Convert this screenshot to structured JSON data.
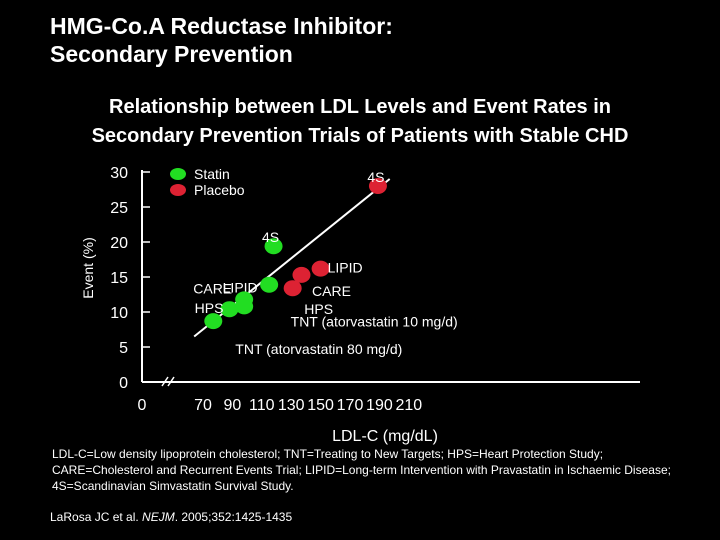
{
  "slide": {
    "title_line1": "HMG-Co.A Reductase Inhibitor:",
    "title_line2": "Secondary Prevention",
    "subtitle_line1": "Relationship between LDL Levels and Event Rates in",
    "subtitle_line2": "Secondary Prevention Trials of Patients with Stable CHD",
    "footnote": "LDL-C=Low density lipoprotein cholesterol; TNT=Treating to New Targets; HPS=Heart Protection Study; CARE=Cholesterol and Recurrent Events Trial; LIPID=Long-term Intervention with Pravastatin in Ischaemic Disease; 4S=Scandinavian Simvastatin Survival Study.",
    "citation_authors": "LaRosa JC et al. ",
    "citation_journal": "NEJM",
    "citation_rest": ". 2005;352:1425-1435"
  },
  "chart_data": {
    "type": "scatter",
    "xlabel": "LDL-C (mg/dL)",
    "ylabel": "Event (%)",
    "x_ticks": [
      "0",
      "70",
      "90",
      "110",
      "130",
      "150",
      "170",
      "190",
      "210"
    ],
    "y_ticks": [
      "0",
      "5",
      "10",
      "15",
      "20",
      "25",
      "30"
    ],
    "xlim": [
      60,
      210
    ],
    "ylim": [
      0,
      30
    ],
    "axis_break": true,
    "legend": [
      {
        "label": "Statin",
        "color": "#22dd22"
      },
      {
        "label": "Placebo",
        "color": "#dd2233"
      }
    ],
    "trend_line": [
      [
        64,
        6.5
      ],
      [
        197,
        29
      ]
    ],
    "points": [
      {
        "label": "4S",
        "group": "Placebo",
        "x": 189,
        "y": 28.0,
        "color": "#dd2233"
      },
      {
        "label": "4S",
        "group": "Statin",
        "x": 118,
        "y": 19.4,
        "color": "#22dd22"
      },
      {
        "label": "LIPID",
        "group": "Placebo",
        "x": 150,
        "y": 16.2,
        "color": "#dd2233"
      },
      {
        "label": "LIPID",
        "group": "Statin",
        "x": 115,
        "y": 13.9,
        "color": "#22dd22"
      },
      {
        "label": "CARE",
        "group": "Placebo",
        "x": 137,
        "y": 15.3,
        "color": "#dd2233"
      },
      {
        "label": "CARE",
        "group": "Statin",
        "x": 98,
        "y": 11.8,
        "color": "#22dd22"
      },
      {
        "label": "HPS",
        "group": "Placebo",
        "x": 131,
        "y": 13.4,
        "color": "#dd2233"
      },
      {
        "label": "HPS",
        "group": "Statin",
        "x": 88,
        "y": 10.4,
        "color": "#22dd22"
      },
      {
        "label": "TNT (atorvastatin 10 mg/d)",
        "group": "Statin",
        "x": 98,
        "y": 10.8,
        "color": "#22dd22"
      },
      {
        "label": "TNT (atorvastatin 80 mg/d)",
        "group": "Statin",
        "x": 77,
        "y": 8.7,
        "color": "#22dd22"
      }
    ]
  }
}
